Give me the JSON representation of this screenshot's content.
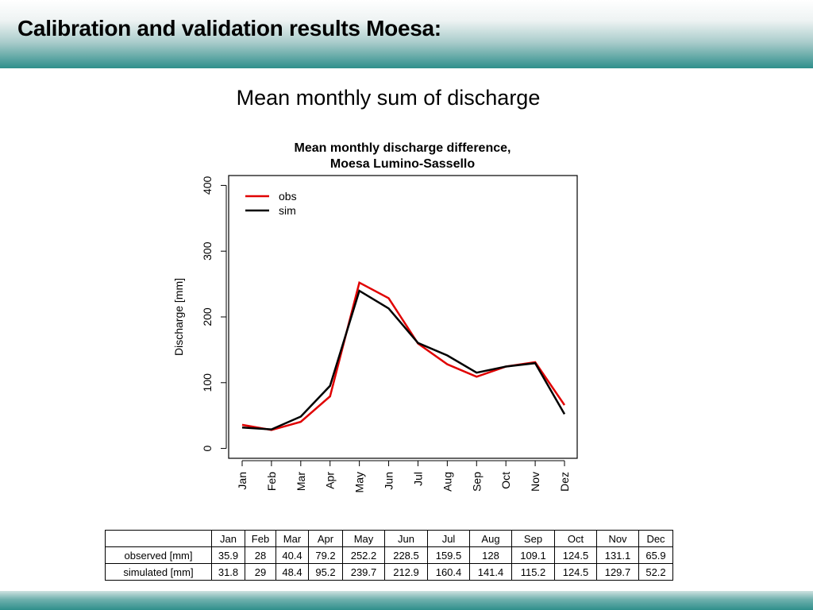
{
  "header": {
    "title": "Calibration and validation results Moesa:"
  },
  "subtitle": "Mean monthly sum of discharge",
  "chart_data": {
    "type": "line",
    "title": [
      "Mean monthly discharge difference,",
      "Moesa Lumino-Sassello"
    ],
    "xlabel": "",
    "ylabel": "Discharge [mm]",
    "categories": [
      "Jan",
      "Feb",
      "Mar",
      "Apr",
      "May",
      "Jun",
      "Jul",
      "Aug",
      "Sep",
      "Oct",
      "Nov",
      "Dez"
    ],
    "ylim": [
      -15,
      415
    ],
    "yticks": [
      0,
      100,
      200,
      300,
      400
    ],
    "grid": false,
    "legend": "top-left",
    "series": [
      {
        "name": "obs",
        "color": "#e00000",
        "values": [
          35.9,
          28,
          40.4,
          79.2,
          252.2,
          228.5,
          159.5,
          128,
          109.1,
          124.5,
          131.1,
          65.9
        ]
      },
      {
        "name": "sim",
        "color": "#000000",
        "values": [
          31.8,
          29,
          48.4,
          95.2,
          239.7,
          212.9,
          160.4,
          141.4,
          115.2,
          124.5,
          129.7,
          52.2
        ]
      }
    ]
  },
  "table": {
    "headers": [
      "Jan",
      "Feb",
      "Mar",
      "Apr",
      "May",
      "Jun",
      "Jul",
      "Aug",
      "Sep",
      "Oct",
      "Nov",
      "Dec"
    ],
    "rows": [
      {
        "label": "observed [mm]",
        "values": [
          "35.9",
          "28",
          "40.4",
          "79.2",
          "252.2",
          "228.5",
          "159.5",
          "128",
          "109.1",
          "124.5",
          "131.1",
          "65.9"
        ]
      },
      {
        "label": "simulated [mm]",
        "values": [
          "31.8",
          "29",
          "48.4",
          "95.2",
          "239.7",
          "212.9",
          "160.4",
          "141.4",
          "115.2",
          "124.5",
          "129.7",
          "52.2"
        ]
      }
    ]
  }
}
